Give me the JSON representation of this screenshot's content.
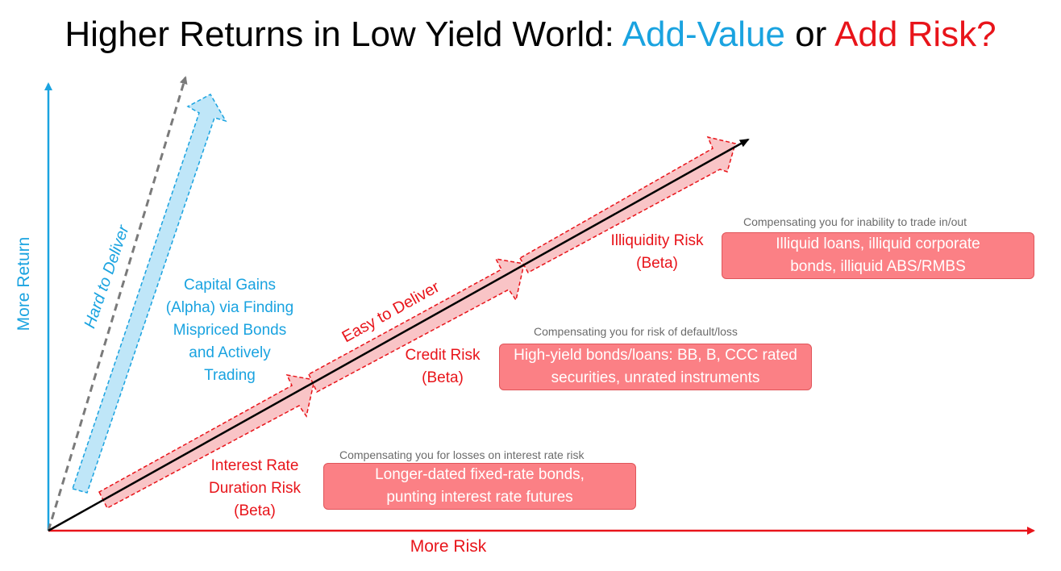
{
  "title": {
    "prefix": "Higher Returns in Low Yield World: ",
    "add_value": "Add-Value",
    "middle": " or ",
    "add_risk": "Add Risk?"
  },
  "axes": {
    "y_label": "More Return",
    "x_label": "More Risk"
  },
  "colors": {
    "blue": "#1aa3e0",
    "red": "#e8141a",
    "box_fill": "#fb8085",
    "arrow_red_fill": "#f9c4c6",
    "arrow_blue_fill": "#bfe6f8"
  },
  "alpha": {
    "hard_label": "Hard to Deliver",
    "text": "Capital Gains (Alpha) via Finding Mispriced Bonds and Actively Trading"
  },
  "beta": {
    "easy_label": "Easy to Deliver",
    "stages": [
      {
        "name": "Interest Rate Duration Risk (Beta)",
        "note": "Compensating you for losses on interest rate risk",
        "box": "Longer-dated fixed-rate bonds, punting interest rate futures"
      },
      {
        "name": "Credit Risk (Beta)",
        "note": "Compensating you for risk of default/loss",
        "box": "High-yield bonds/loans: BB, B, CCC rated securities, unrated instruments"
      },
      {
        "name": "Illiquidity Risk (Beta)",
        "note": "Compensating you for inability to trade in/out",
        "box": "Illiquid loans, illiquid corporate bonds, illiquid ABS/RMBS"
      }
    ]
  }
}
